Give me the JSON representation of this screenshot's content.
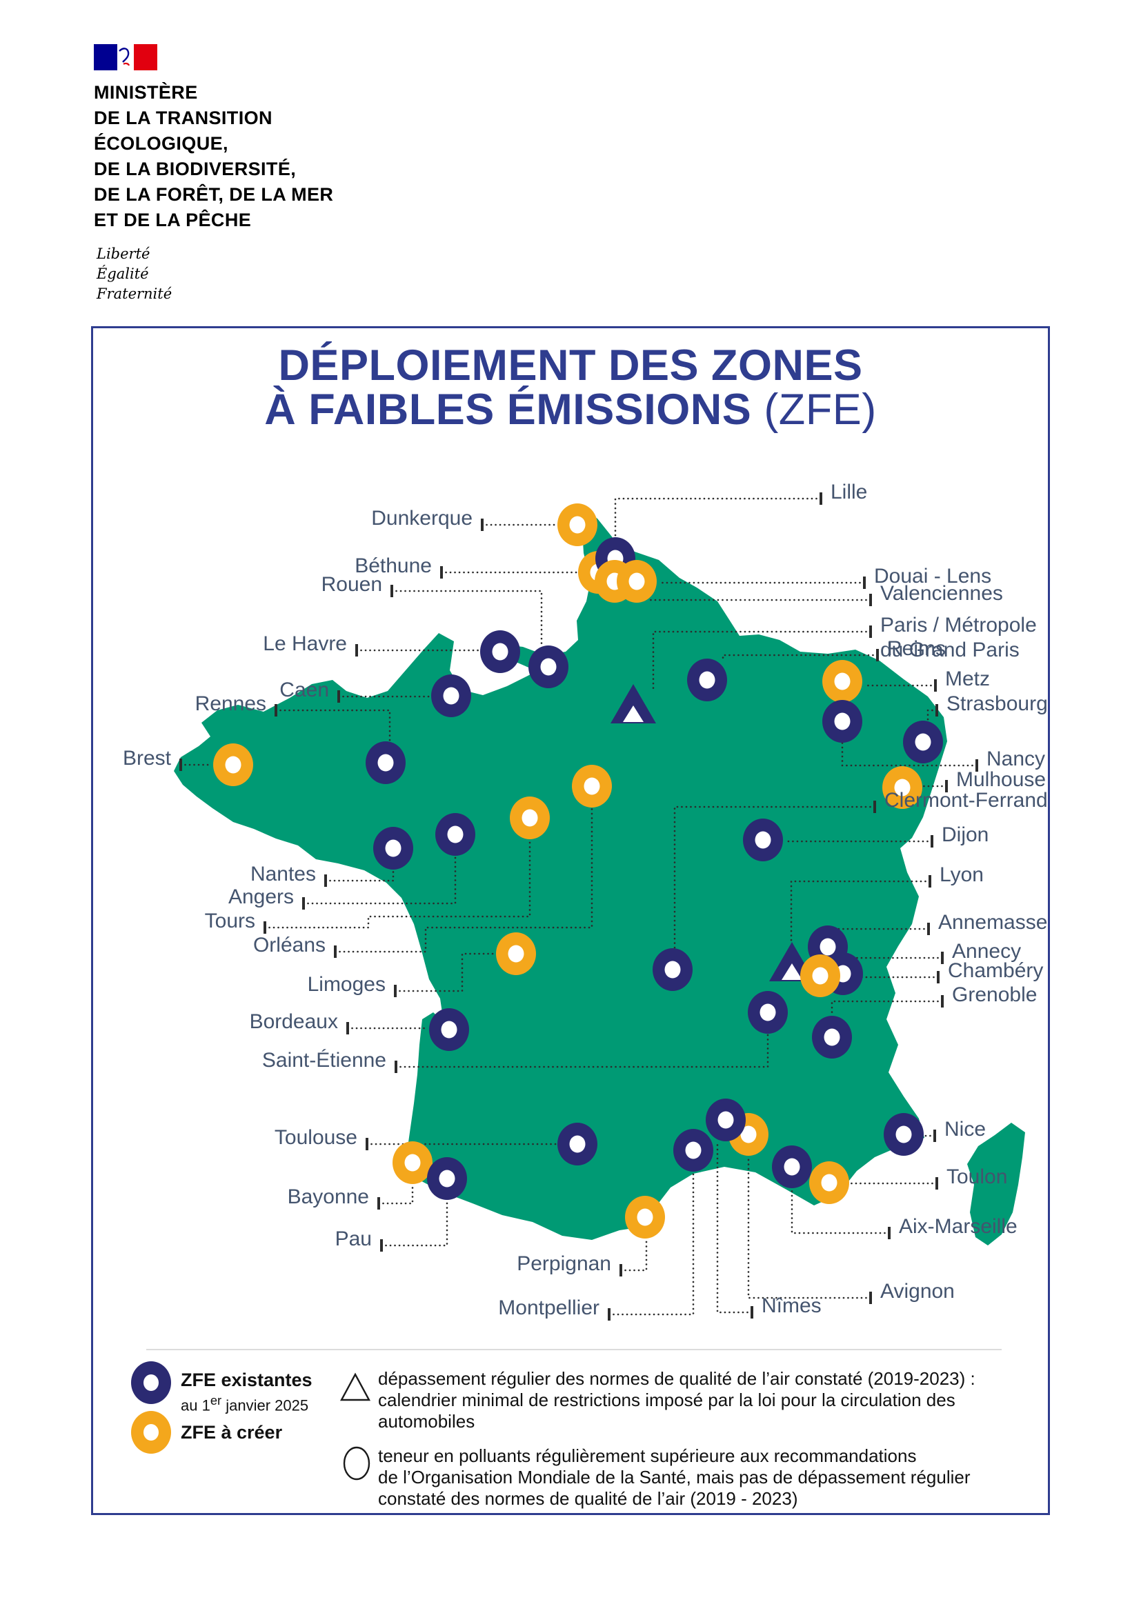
{
  "header": {
    "ministry_lines": [
      "MINISTÈRE",
      "DE LA TRANSITION",
      "ÉCOLOGIQUE,",
      "DE LA BIODIVERSITÉ,",
      "DE LA FORÊT, DE LA MER",
      "ET DE LA PÊCHE"
    ],
    "motto": [
      "Liberté",
      "Égalité",
      "Fraternité"
    ]
  },
  "title": {
    "line1": "DÉPLOIEMENT DES ZONES",
    "line2": "À FAIBLES ÉMISSIONS",
    "line2_suffix": " (ZFE)"
  },
  "colors": {
    "map_green": "#009a74",
    "zfe_existing_navy": "#2b2a72",
    "zfe_create_yellow": "#f4a71c",
    "title_blue": "#2f3d8f",
    "label_slate": "#44546e",
    "flag_blue": "#000091",
    "flag_red": "#e1000f"
  },
  "legend": {
    "existing_label": "ZFE existantes",
    "existing_sub_pre": "au 1",
    "existing_sub_sup": "er",
    "existing_sub_post": " janvier 2025",
    "create_label": "ZFE à créer",
    "triangle_lines": [
      "dépassement régulier des normes de qualité de l’air constaté (2019-2023) :",
      "calendrier minimal de restrictions imposé par la loi pour la circulation des",
      "automobiles"
    ],
    "circle_lines": [
      "teneur en polluants régulièrement supérieure aux recommandations",
      "de l’Organisation Mondiale de la Santé, mais pas de dépassement régulier",
      "constaté des normes de qualité de l’air (2019 - 2023)"
    ]
  },
  "map": {
    "cities": [
      {
        "name": "Dunkerque",
        "type": "create",
        "side": "left",
        "marker": [
          837,
          761
        ],
        "tick": [
          699,
          761
        ],
        "route": [
          [
            699,
            761
          ],
          [
            806,
            761
          ]
        ]
      },
      {
        "name": "Béthune",
        "type": "create",
        "side": "left",
        "marker": [
          867,
          830
        ],
        "tick": [
          640,
          830
        ],
        "route": [
          [
            640,
            830
          ],
          [
            836,
            830
          ]
        ]
      },
      {
        "name": "Rouen",
        "type": "existing",
        "side": "left",
        "marker": [
          795,
          967
        ],
        "tick": [
          568,
          857
        ],
        "route": [
          [
            568,
            857
          ],
          [
            785,
            857
          ],
          [
            785,
            936
          ]
        ]
      },
      {
        "name": "Le Havre",
        "type": "existing",
        "side": "left",
        "marker": [
          725,
          945
        ],
        "tick": [
          517,
          943
        ],
        "route": [
          [
            517,
            943
          ],
          [
            694,
            943
          ]
        ]
      },
      {
        "name": "Caen",
        "type": "existing",
        "side": "left",
        "marker": [
          654,
          1009
        ],
        "tick": [
          491,
          1010
        ],
        "route": [
          [
            491,
            1010
          ],
          [
            623,
            1010
          ]
        ]
      },
      {
        "name": "Rennes",
        "type": "existing",
        "side": "left",
        "marker": [
          559,
          1106
        ],
        "tick": [
          400,
          1030
        ],
        "route": [
          [
            400,
            1030
          ],
          [
            565,
            1030
          ],
          [
            565,
            1075
          ]
        ]
      },
      {
        "name": "Brest",
        "type": "create",
        "side": "left",
        "marker": [
          338,
          1109
        ],
        "tick": [
          262,
          1109
        ],
        "route": [
          [
            262,
            1109
          ],
          [
            307,
            1109
          ]
        ]
      },
      {
        "name": "Nantes",
        "type": "existing",
        "side": "left",
        "marker": [
          570,
          1230
        ],
        "tick": [
          472,
          1277
        ],
        "route": [
          [
            472,
            1277
          ],
          [
            570,
            1277
          ],
          [
            570,
            1261
          ]
        ]
      },
      {
        "name": "Angers",
        "type": "existing",
        "side": "left",
        "marker": [
          660,
          1210
        ],
        "tick": [
          440,
          1310
        ],
        "route": [
          [
            440,
            1310
          ],
          [
            660,
            1310
          ],
          [
            660,
            1241
          ]
        ]
      },
      {
        "name": "Tours",
        "type": "create",
        "side": "left",
        "marker": [
          768,
          1186
        ],
        "tick": [
          384,
          1345
        ],
        "route": [
          [
            384,
            1345
          ],
          [
            534,
            1345
          ],
          [
            534,
            1329
          ],
          [
            768,
            1329
          ],
          [
            768,
            1217
          ]
        ]
      },
      {
        "name": "Orléans",
        "type": "create",
        "side": "left",
        "marker": [
          858,
          1140
        ],
        "tick": [
          486,
          1380
        ],
        "route": [
          [
            486,
            1380
          ],
          [
            617,
            1380
          ],
          [
            617,
            1345
          ],
          [
            858,
            1345
          ],
          [
            858,
            1171
          ]
        ]
      },
      {
        "name": "Limoges",
        "type": "create",
        "side": "left",
        "marker": [
          748,
          1383
        ],
        "tick": [
          573,
          1437
        ],
        "route": [
          [
            573,
            1437
          ],
          [
            670,
            1437
          ],
          [
            670,
            1383
          ],
          [
            717,
            1383
          ]
        ]
      },
      {
        "name": "Bordeaux",
        "type": "existing",
        "side": "left",
        "marker": [
          651,
          1493
        ],
        "tick": [
          504,
          1491
        ],
        "route": [
          [
            504,
            1491
          ],
          [
            620,
            1491
          ]
        ]
      },
      {
        "name": "Saint-Étienne",
        "type": "existing",
        "side": "left",
        "marker": [
          1113,
          1468
        ],
        "tick": [
          574,
          1547
        ],
        "route": [
          [
            574,
            1547
          ],
          [
            1113,
            1547
          ],
          [
            1113,
            1499
          ]
        ]
      },
      {
        "name": "Toulouse",
        "type": "existing",
        "side": "left",
        "marker": [
          837,
          1659
        ],
        "tick": [
          532,
          1659
        ],
        "route": [
          [
            532,
            1659
          ],
          [
            806,
            1659
          ]
        ]
      },
      {
        "name": "Bayonne",
        "type": "create",
        "side": "left",
        "marker": [
          598,
          1686
        ],
        "tick": [
          549,
          1745
        ],
        "route": [
          [
            549,
            1745
          ],
          [
            598,
            1745
          ],
          [
            598,
            1717
          ]
        ]
      },
      {
        "name": "Pau",
        "type": "existing",
        "side": "left",
        "marker": [
          648,
          1709
        ],
        "tick": [
          553,
          1806
        ],
        "route": [
          [
            553,
            1806
          ],
          [
            648,
            1806
          ],
          [
            648,
            1740
          ]
        ]
      },
      {
        "name": "Perpignan",
        "type": "create",
        "side": "left",
        "marker": [
          935,
          1765
        ],
        "tick": [
          900,
          1842
        ],
        "route": [
          [
            900,
            1842
          ],
          [
            937,
            1842
          ],
          [
            937,
            1796
          ]
        ]
      },
      {
        "name": "Montpellier",
        "type": "existing",
        "side": "left",
        "marker": [
          1005,
          1668
        ],
        "tick": [
          883,
          1906
        ],
        "route": [
          [
            883,
            1906
          ],
          [
            1005,
            1906
          ],
          [
            1005,
            1699
          ]
        ]
      },
      {
        "name": "Lille",
        "type": "existing",
        "side": "right",
        "marker": [
          892,
          810
        ],
        "tick": [
          1190,
          723
        ],
        "route": [
          [
            1190,
            723
          ],
          [
            892,
            723
          ],
          [
            892,
            779
          ]
        ]
      },
      {
        "name": "Douai - Lens",
        "type": "create",
        "side": "right",
        "marker": [
          891,
          843
        ],
        "tick": [
          1253,
          845
        ],
        "route": [
          [
            1253,
            845
          ],
          [
            955,
            845
          ]
        ]
      },
      {
        "name": "Valenciennes",
        "type": "create",
        "side": "right",
        "marker": [
          923,
          843
        ],
        "tick": [
          1262,
          870
        ],
        "route": [
          [
            1262,
            870
          ],
          [
            940,
            870
          ]
        ]
      },
      {
        "name": "Paris / Métropole du Grand Paris",
        "lines": [
          "Paris / Métropole",
          "du Grand Paris"
        ],
        "type": "triangle",
        "side": "right",
        "marker": [
          918,
          1022
        ],
        "tick": [
          1262,
          916
        ],
        "route": [
          [
            1262,
            916
          ],
          [
            947,
            916
          ],
          [
            947,
            1000
          ]
        ]
      },
      {
        "name": "Reims",
        "type": "existing",
        "side": "right",
        "marker": [
          1025,
          986
        ],
        "tick": [
          1272,
          950
        ],
        "route": [
          [
            1272,
            950
          ],
          [
            1048,
            950
          ],
          [
            1048,
            958
          ]
        ]
      },
      {
        "name": "Metz",
        "type": "create",
        "side": "right",
        "marker": [
          1221,
          988
        ],
        "tick": [
          1356,
          994
        ],
        "route": [
          [
            1356,
            994
          ],
          [
            1252,
            994
          ]
        ]
      },
      {
        "name": "Strasbourg",
        "type": "existing",
        "side": "right",
        "marker": [
          1338,
          1076
        ],
        "tick": [
          1358,
          1030
        ],
        "route": [
          [
            1358,
            1030
          ],
          [
            1345,
            1030
          ],
          [
            1345,
            1047
          ]
        ]
      },
      {
        "name": "Nancy",
        "type": "existing",
        "side": "right",
        "marker": [
          1221,
          1046
        ],
        "tick": [
          1416,
          1110
        ],
        "route": [
          [
            1416,
            1110
          ],
          [
            1221,
            1110
          ],
          [
            1221,
            1077
          ]
        ]
      },
      {
        "name": "Mulhouse",
        "type": "create",
        "side": "right",
        "marker": [
          1308,
          1142
        ],
        "tick": [
          1372,
          1140
        ],
        "route": [
          [
            1372,
            1140
          ],
          [
            1339,
            1140
          ]
        ]
      },
      {
        "name": "Clermont-Ferrand",
        "type": "existing",
        "side": "right",
        "marker": [
          975,
          1406
        ],
        "tick": [
          1268,
          1170
        ],
        "route": [
          [
            1268,
            1170
          ],
          [
            978,
            1170
          ],
          [
            978,
            1375
          ]
        ]
      },
      {
        "name": "Dijon",
        "type": "existing",
        "side": "right",
        "marker": [
          1106,
          1218
        ],
        "tick": [
          1351,
          1220
        ],
        "route": [
          [
            1351,
            1220
          ],
          [
            1137,
            1220
          ]
        ]
      },
      {
        "name": "Lyon",
        "type": "triangle",
        "side": "right",
        "marker": [
          1148,
          1396
        ],
        "tick": [
          1348,
          1278
        ],
        "route": [
          [
            1348,
            1278
          ],
          [
            1147,
            1278
          ],
          [
            1147,
            1366
          ]
        ]
      },
      {
        "name": "Annemasse",
        "type": "existing",
        "side": "right",
        "marker": [
          1200,
          1373
        ],
        "tick": [
          1346,
          1347
        ],
        "route": [
          [
            1346,
            1347
          ],
          [
            1203,
            1347
          ]
        ]
      },
      {
        "name": "Annecy",
        "type": "existing",
        "side": "right",
        "marker": [
          1222,
          1412
        ],
        "tick": [
          1366,
          1389
        ],
        "route": [
          [
            1366,
            1389
          ],
          [
            1223,
            1389
          ]
        ]
      },
      {
        "name": "Chambéry",
        "type": "create",
        "side": "right",
        "marker": [
          1189,
          1415
        ],
        "tick": [
          1360,
          1417
        ],
        "route": [
          [
            1360,
            1417
          ],
          [
            1242,
            1417
          ]
        ]
      },
      {
        "name": "Grenoble",
        "type": "existing",
        "side": "right",
        "marker": [
          1206,
          1504
        ],
        "tick": [
          1366,
          1452
        ],
        "route": [
          [
            1366,
            1452
          ],
          [
            1206,
            1452
          ],
          [
            1206,
            1473
          ]
        ]
      },
      {
        "name": "Nice",
        "type": "existing",
        "side": "right",
        "marker": [
          1310,
          1645
        ],
        "tick": [
          1355,
          1647
        ],
        "route": [
          [
            1355,
            1647
          ],
          [
            1341,
            1647
          ]
        ]
      },
      {
        "name": "Toulon",
        "type": "create",
        "side": "right",
        "marker": [
          1202,
          1715
        ],
        "tick": [
          1358,
          1716
        ],
        "route": [
          [
            1358,
            1716
          ],
          [
            1233,
            1716
          ]
        ]
      },
      {
        "name": "Aix-Marseille",
        "type": "existing",
        "side": "right",
        "marker": [
          1148,
          1692
        ],
        "tick": [
          1289,
          1788
        ],
        "route": [
          [
            1289,
            1788
          ],
          [
            1148,
            1788
          ],
          [
            1148,
            1723
          ]
        ]
      },
      {
        "name": "Avignon",
        "type": "create",
        "side": "right",
        "marker": [
          1085,
          1645
        ],
        "tick": [
          1262,
          1882
        ],
        "route": [
          [
            1262,
            1882
          ],
          [
            1085,
            1882
          ],
          [
            1085,
            1676
          ]
        ]
      },
      {
        "name": "Nîmes",
        "type": "existing",
        "side": "right",
        "marker": [
          1052,
          1624
        ],
        "tick": [
          1090,
          1903
        ],
        "route": [
          [
            1090,
            1903
          ],
          [
            1040,
            1903
          ],
          [
            1040,
            1655
          ]
        ]
      }
    ]
  }
}
